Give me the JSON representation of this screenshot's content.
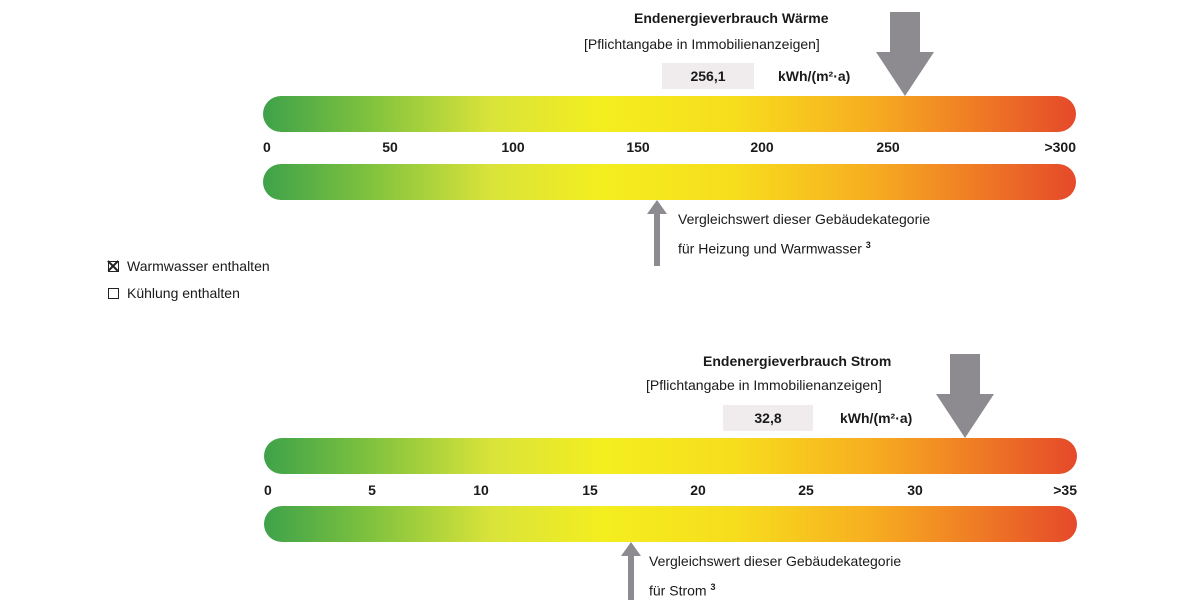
{
  "heat": {
    "title": "Endenergieverbrauch Wärme",
    "subtitle": "[Pflichtangabe in Immobilienanzeigen]",
    "value": "256,1",
    "unit": "kWh/(m²·a)",
    "ticks": [
      "0",
      "50",
      "100",
      "150",
      "200",
      "250",
      ">300"
    ],
    "scale_max": 300,
    "consumption_value": 256.1,
    "comparison_value": 155,
    "comparison_line1": "Vergleichswert dieser Gebäudekategorie",
    "comparison_line2": "für Heizung und Warmwasser",
    "comparison_sup": "3"
  },
  "options": {
    "warmwasser_label": "Warmwasser enthalten",
    "warmwasser_checked": true,
    "kuehlung_label": "Kühlung enthalten",
    "kuehlung_checked": false
  },
  "power": {
    "title": "Endenergieverbrauch Strom",
    "subtitle": "[Pflichtangabe in Immobilienanzeigen]",
    "value": "32,8",
    "unit": "kWh/(m²·a)",
    "ticks": [
      "0",
      "5",
      "10",
      "15",
      "20",
      "25",
      "30",
      ">35"
    ],
    "scale_max": 35,
    "consumption_value": 32.8,
    "comparison_value": 16.8,
    "comparison_line1": "Vergleichswert dieser Gebäudekategorie",
    "comparison_line2": "für Strom",
    "comparison_sup": "3"
  },
  "colors": {
    "arrow": "#8e8b90",
    "value_bg": "#f0ecee"
  }
}
